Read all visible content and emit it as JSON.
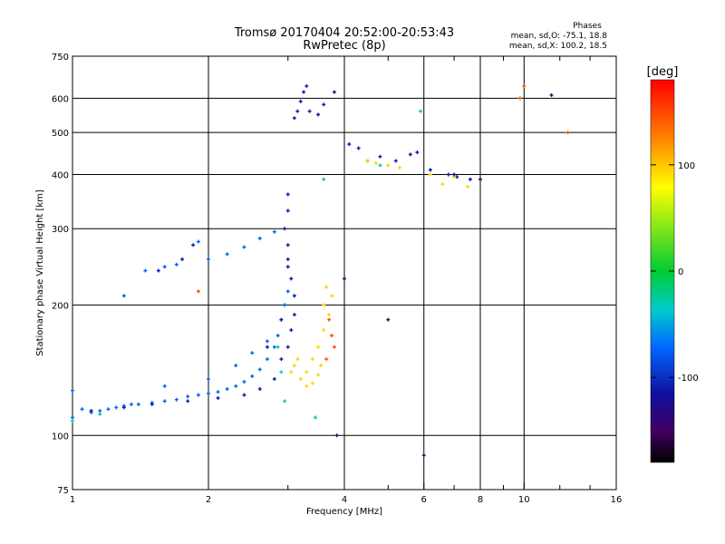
{
  "chart_data": {
    "type": "scatter",
    "title": "Tromsø 20170404 20:52:00-20:53:43",
    "subtitle": "RwPretec (8p)",
    "xlabel": "Frequency [MHz]",
    "ylabel": "Stationary phase Virtual Height [km]",
    "x_scale": "log",
    "y_scale": "log",
    "xlim": [
      1,
      16
    ],
    "ylim": [
      75,
      750
    ],
    "x_ticks": [
      1,
      2,
      4,
      6,
      8,
      10,
      16
    ],
    "y_ticks": [
      75,
      100,
      200,
      300,
      400,
      500,
      600,
      750
    ],
    "x_minor": [
      3,
      5,
      7,
      9,
      12,
      14
    ],
    "y_minor": [],
    "grid": true,
    "legend": {
      "title": "Phases",
      "lines": [
        "mean, sd,O: -75.1, 18.8",
        "mean, sd,X: 100.2, 18.5"
      ],
      "placement": "top-right"
    },
    "colorbar": {
      "title": "[deg]",
      "ticks": [
        100,
        0,
        -100
      ],
      "range": [
        -180,
        180
      ],
      "placement": "right"
    },
    "series": [
      {
        "phase": -75,
        "points": [
          [
            1.0,
            127
          ],
          [
            1.05,
            115
          ],
          [
            1.1,
            113
          ],
          [
            1.15,
            114
          ],
          [
            1.2,
            115
          ],
          [
            1.25,
            116
          ],
          [
            1.3,
            117
          ],
          [
            1.35,
            118
          ],
          [
            1.4,
            118
          ],
          [
            1.5,
            119
          ],
          [
            1.6,
            120
          ],
          [
            1.7,
            121
          ],
          [
            1.8,
            123
          ],
          [
            1.9,
            124
          ],
          [
            2.0,
            125
          ],
          [
            2.1,
            126
          ],
          [
            2.2,
            128
          ],
          [
            2.3,
            130
          ],
          [
            2.4,
            133
          ],
          [
            2.5,
            137
          ],
          [
            2.6,
            142
          ],
          [
            2.7,
            150
          ],
          [
            2.8,
            160
          ],
          [
            2.85,
            170
          ],
          [
            2.9,
            185
          ],
          [
            2.95,
            200
          ],
          [
            3.0,
            215
          ],
          [
            1.3,
            210
          ],
          [
            1.45,
            240
          ],
          [
            1.6,
            245
          ],
          [
            1.7,
            248
          ],
          [
            1.9,
            280
          ],
          [
            2.0,
            255
          ],
          [
            2.2,
            262
          ],
          [
            2.4,
            272
          ],
          [
            2.6,
            285
          ],
          [
            2.8,
            295
          ],
          [
            1.0,
            110
          ],
          [
            1.6,
            130
          ],
          [
            2.0,
            135
          ],
          [
            2.3,
            145
          ],
          [
            2.5,
            155
          ],
          [
            2.7,
            165
          ]
        ]
      },
      {
        "phase": -110,
        "points": [
          [
            1.1,
            114
          ],
          [
            1.3,
            116
          ],
          [
            1.5,
            118
          ],
          [
            1.8,
            120
          ],
          [
            2.1,
            122
          ],
          [
            2.4,
            124
          ],
          [
            2.6,
            128
          ],
          [
            2.8,
            135
          ],
          [
            2.9,
            150
          ],
          [
            3.0,
            160
          ],
          [
            3.05,
            175
          ],
          [
            3.1,
            190
          ],
          [
            3.1,
            210
          ],
          [
            3.05,
            230
          ],
          [
            3.0,
            255
          ],
          [
            3.0,
            275
          ],
          [
            2.95,
            300
          ],
          [
            3.0,
            330
          ],
          [
            3.0,
            360
          ],
          [
            3.1,
            540
          ],
          [
            3.15,
            560
          ],
          [
            3.2,
            590
          ],
          [
            3.25,
            620
          ],
          [
            3.3,
            640
          ],
          [
            3.35,
            560
          ],
          [
            3.5,
            550
          ],
          [
            3.6,
            580
          ],
          [
            4.1,
            470
          ],
          [
            4.3,
            460
          ],
          [
            4.5,
            430
          ],
          [
            4.8,
            440
          ],
          [
            5.2,
            430
          ],
          [
            5.6,
            445
          ],
          [
            5.8,
            450
          ],
          [
            6.2,
            410
          ],
          [
            6.8,
            400
          ],
          [
            7.1,
            395
          ],
          [
            7.6,
            390
          ],
          [
            1.55,
            240
          ],
          [
            1.75,
            255
          ],
          [
            1.85,
            275
          ],
          [
            2.7,
            160
          ],
          [
            2.9,
            185
          ],
          [
            3.0,
            245
          ]
        ]
      },
      {
        "phase": 95,
        "points": [
          [
            3.05,
            140
          ],
          [
            3.1,
            145
          ],
          [
            3.15,
            150
          ],
          [
            3.2,
            135
          ],
          [
            3.3,
            140
          ],
          [
            3.4,
            150
          ],
          [
            3.5,
            160
          ],
          [
            3.6,
            175
          ],
          [
            3.7,
            190
          ],
          [
            3.75,
            210
          ],
          [
            3.6,
            200
          ],
          [
            3.65,
            220
          ],
          [
            3.3,
            130
          ],
          [
            3.4,
            132
          ],
          [
            3.5,
            138
          ],
          [
            3.55,
            145
          ],
          [
            4.5,
            430
          ],
          [
            4.7,
            425
          ],
          [
            5.0,
            420
          ],
          [
            5.3,
            415
          ],
          [
            6.2,
            400
          ],
          [
            6.6,
            380
          ],
          [
            7.0,
            395
          ],
          [
            7.5,
            375
          ]
        ]
      },
      {
        "phase": 145,
        "points": [
          [
            3.7,
            185
          ],
          [
            3.75,
            170
          ],
          [
            3.8,
            160
          ],
          [
            3.65,
            150
          ],
          [
            1.9,
            215
          ],
          [
            10.0,
            640
          ],
          [
            12.5,
            500
          ],
          [
            9.8,
            600
          ]
        ]
      },
      {
        "phase": -30,
        "points": [
          [
            1.0,
            108
          ],
          [
            1.15,
            112
          ],
          [
            2.9,
            140
          ],
          [
            2.85,
            160
          ],
          [
            2.95,
            120
          ],
          [
            3.45,
            110
          ],
          [
            3.6,
            390
          ],
          [
            4.8,
            420
          ],
          [
            5.9,
            560
          ]
        ]
      },
      {
        "phase": -150,
        "points": [
          [
            3.8,
            620
          ],
          [
            4.0,
            230
          ],
          [
            5.0,
            185
          ],
          [
            6.0,
            90
          ],
          [
            7.0,
            400
          ],
          [
            8.0,
            390
          ],
          [
            11.5,
            610
          ],
          [
            3.85,
            100
          ]
        ]
      }
    ]
  }
}
